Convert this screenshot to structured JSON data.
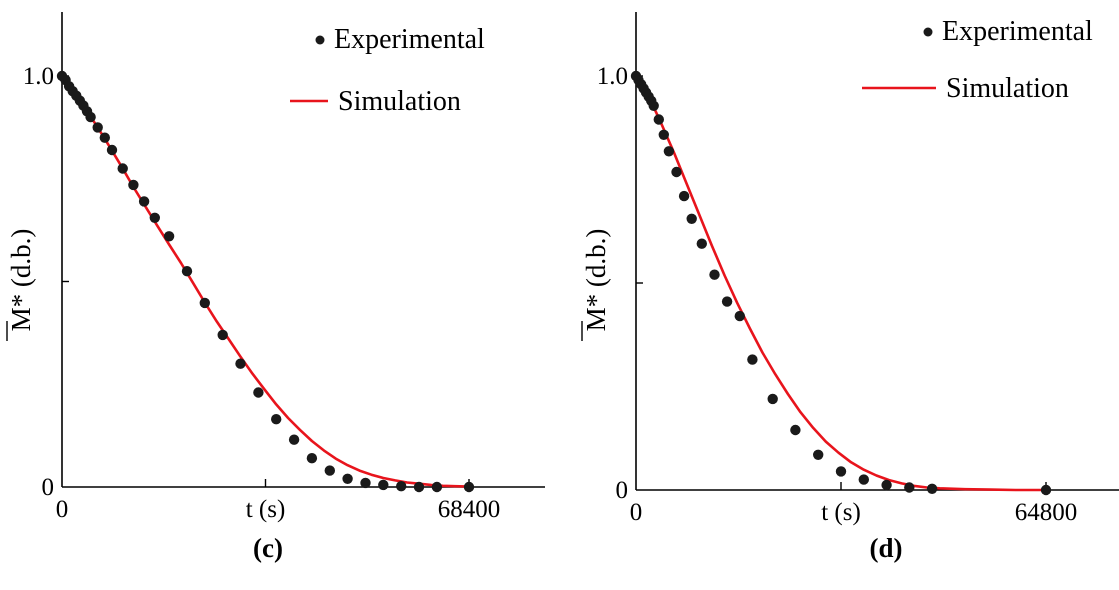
{
  "chart_data": [
    {
      "type": "scatter",
      "caption": "(c)",
      "xlabel": "t (s)",
      "ylabel": "M* (d.b.)",
      "xlim": [
        0,
        92000
      ],
      "ylim": [
        0,
        1.15
      ],
      "x_ticks": [
        {
          "value": 0,
          "label": "0"
        },
        {
          "value": 34200,
          "label": ""
        },
        {
          "value": 68400,
          "label": "68400"
        }
      ],
      "x_tick_labels": [
        {
          "value": 0,
          "label": "0"
        },
        {
          "value": 34200,
          "label": "t (s)"
        },
        {
          "value": 68400,
          "label": "68400"
        }
      ],
      "y_ticks": [
        {
          "value": 0,
          "label": "0"
        },
        {
          "value": 0.5,
          "label": ""
        },
        {
          "value": 1.0,
          "label": "1.0"
        }
      ],
      "legend": {
        "position": "top-right",
        "entries": [
          {
            "label": "Experimental",
            "kind": "marker"
          },
          {
            "label": "Simulation",
            "kind": "line"
          }
        ]
      },
      "series": [
        {
          "name": "Experimental",
          "kind": "scatter",
          "color": "#1a1a1a",
          "x": [
            0,
            600,
            1200,
            1800,
            2400,
            3000,
            3600,
            4200,
            4800,
            6000,
            7200,
            8400,
            10200,
            12000,
            13800,
            15600,
            18000,
            21000,
            24000,
            27000,
            30000,
            33000,
            36000,
            39000,
            42000,
            45000,
            48000,
            51000,
            54000,
            57000,
            60000,
            63000,
            68400
          ],
          "y": [
            1.0,
            0.99,
            0.975,
            0.963,
            0.952,
            0.94,
            0.928,
            0.914,
            0.9,
            0.875,
            0.85,
            0.82,
            0.775,
            0.735,
            0.695,
            0.655,
            0.61,
            0.525,
            0.448,
            0.37,
            0.3,
            0.23,
            0.165,
            0.115,
            0.07,
            0.04,
            0.02,
            0.01,
            0.005,
            0.002,
            0.0,
            0.0,
            0.0
          ]
        },
        {
          "name": "Simulation",
          "kind": "line",
          "color": "#e8141c",
          "x": [
            0,
            1500,
            3000,
            4500,
            6000,
            8000,
            10000,
            12000,
            14000,
            16000,
            18000,
            20000,
            22000,
            24000,
            26000,
            28000,
            30000,
            32000,
            34000,
            36000,
            38000,
            40000,
            42000,
            44000,
            46000,
            48000,
            50000,
            52000,
            54000,
            56000,
            58000,
            60000,
            62000,
            64000,
            66000,
            68400
          ],
          "y": [
            1.0,
            0.97,
            0.94,
            0.908,
            0.875,
            0.828,
            0.78,
            0.73,
            0.683,
            0.636,
            0.59,
            0.545,
            0.497,
            0.449,
            0.403,
            0.36,
            0.317,
            0.276,
            0.238,
            0.201,
            0.168,
            0.139,
            0.112,
            0.089,
            0.069,
            0.053,
            0.04,
            0.03,
            0.022,
            0.016,
            0.011,
            0.008,
            0.005,
            0.003,
            0.002,
            0.001
          ]
        }
      ]
    },
    {
      "type": "scatter",
      "caption": "(d)",
      "xlabel": "t (s)",
      "ylabel": "M* (d.b.)",
      "xlim": [
        0,
        92000
      ],
      "ylim": [
        0,
        1.15
      ],
      "x_ticks": [
        {
          "value": 0,
          "label": "0"
        },
        {
          "value": 32400,
          "label": ""
        },
        {
          "value": 64800,
          "label": "64800"
        }
      ],
      "x_tick_labels": [
        {
          "value": 0,
          "label": "0"
        },
        {
          "value": 32400,
          "label": "t (s)"
        },
        {
          "value": 64800,
          "label": "64800"
        }
      ],
      "y_ticks": [
        {
          "value": 0,
          "label": "0"
        },
        {
          "value": 0.5,
          "label": ""
        },
        {
          "value": 1.0,
          "label": "1.0"
        }
      ],
      "legend": {
        "position": "top-right",
        "entries": [
          {
            "label": "Experimental",
            "kind": "marker"
          },
          {
            "label": "Simulation",
            "kind": "line"
          }
        ]
      },
      "series": [
        {
          "name": "Experimental",
          "kind": "scatter",
          "color": "#1a1a1a",
          "x": [
            0,
            400,
            800,
            1200,
            1600,
            2000,
            2400,
            2800,
            3600,
            4400,
            5200,
            6400,
            7600,
            8800,
            10400,
            12400,
            14400,
            16400,
            18400,
            21600,
            25200,
            28800,
            32400,
            36000,
            39600,
            43200,
            46800,
            64800
          ],
          "y": [
            1.0,
            0.99,
            0.98,
            0.97,
            0.96,
            0.95,
            0.94,
            0.928,
            0.895,
            0.858,
            0.818,
            0.768,
            0.71,
            0.655,
            0.595,
            0.52,
            0.455,
            0.42,
            0.315,
            0.22,
            0.145,
            0.085,
            0.045,
            0.025,
            0.012,
            0.006,
            0.003,
            0.0
          ]
        },
        {
          "name": "Simulation",
          "kind": "line",
          "color": "#e8141c",
          "x": [
            0,
            1000,
            2000,
            3000,
            4000,
            6000,
            8000,
            10000,
            12000,
            14000,
            16000,
            18000,
            20000,
            22000,
            24000,
            26000,
            28000,
            30000,
            32000,
            34000,
            36000,
            38000,
            40000,
            42000,
            44000,
            46000,
            48000,
            52000,
            56000,
            60000,
            64800
          ],
          "y": [
            1.0,
            0.975,
            0.948,
            0.918,
            0.885,
            0.815,
            0.74,
            0.665,
            0.59,
            0.518,
            0.452,
            0.39,
            0.332,
            0.28,
            0.232,
            0.188,
            0.15,
            0.117,
            0.09,
            0.067,
            0.049,
            0.035,
            0.024,
            0.016,
            0.01,
            0.006,
            0.004,
            0.002,
            0.001,
            0.0,
            0.0
          ]
        }
      ]
    }
  ]
}
